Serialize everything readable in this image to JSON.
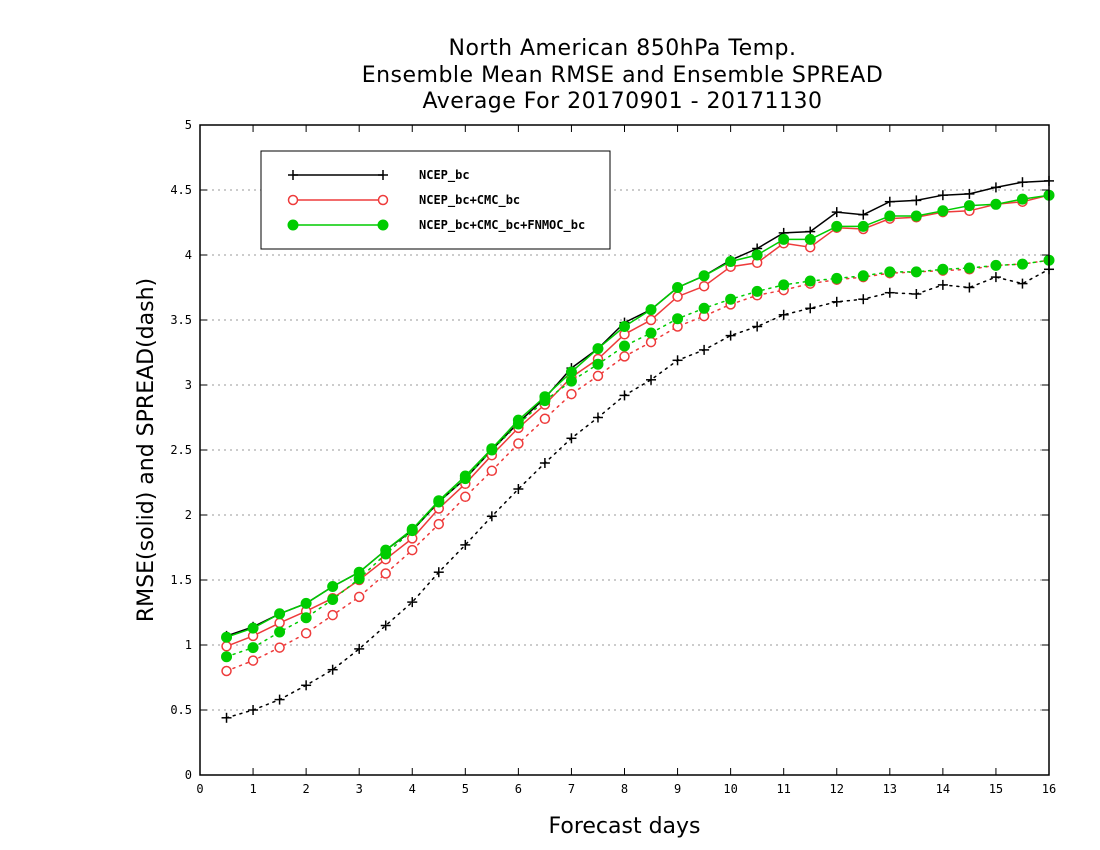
{
  "chart_data": {
    "type": "line",
    "title": [
      "North American 850hPa Temp.",
      "Ensemble Mean RMSE and Ensemble SPREAD",
      "Average For 20170901 - 20171130"
    ],
    "xlabel": "Forecast days",
    "ylabel": "RMSE(solid) and SPREAD(dash)",
    "xlim": [
      0,
      16
    ],
    "ylim": [
      0,
      5
    ],
    "xticks": [
      "0",
      "1",
      "2",
      "3",
      "4",
      "5",
      "6",
      "7",
      "8",
      "9",
      "10",
      "11",
      "12",
      "13",
      "14",
      "15",
      "16"
    ],
    "yticks": [
      "0",
      "0.5",
      "1",
      "1.5",
      "2",
      "2.5",
      "3",
      "3.5",
      "4",
      "4.5",
      "5"
    ],
    "grid": true,
    "legend_position": "top-left",
    "x": [
      0.5,
      1,
      1.5,
      2,
      2.5,
      3,
      3.5,
      4,
      4.5,
      5,
      5.5,
      6,
      6.5,
      7,
      7.5,
      8,
      8.5,
      9,
      9.5,
      10,
      10.5,
      11,
      11.5,
      12,
      12.5,
      13,
      13.5,
      14,
      14.5,
      15,
      15.5,
      16
    ],
    "series": [
      {
        "name": "NCEP_bc",
        "color": "#000000",
        "marker": "plus",
        "rmse": [
          1.07,
          1.14,
          1.24,
          1.32,
          1.45,
          1.56,
          1.73,
          1.88,
          2.1,
          2.28,
          2.5,
          2.71,
          2.9,
          3.13,
          3.28,
          3.48,
          3.58,
          3.75,
          3.84,
          3.96,
          4.05,
          4.17,
          4.18,
          4.33,
          4.31,
          4.41,
          4.42,
          4.46,
          4.47,
          4.52,
          4.56,
          4.57
        ],
        "spread": [
          0.44,
          0.5,
          0.58,
          0.69,
          0.81,
          0.97,
          1.15,
          1.33,
          1.56,
          1.77,
          1.99,
          2.2,
          2.4,
          2.59,
          2.75,
          2.92,
          3.04,
          3.19,
          3.27,
          3.38,
          3.45,
          3.54,
          3.59,
          3.64,
          3.66,
          3.71,
          3.7,
          3.77,
          3.75,
          3.83,
          3.78,
          3.89
        ]
      },
      {
        "name": "NCEP_bc+CMC_bc",
        "color": "#ee3b3b",
        "marker": "open-circle",
        "rmse": [
          0.99,
          1.07,
          1.17,
          1.26,
          1.36,
          1.5,
          1.66,
          1.82,
          2.05,
          2.24,
          2.46,
          2.67,
          2.85,
          3.06,
          3.2,
          3.39,
          3.5,
          3.68,
          3.76,
          3.91,
          3.94,
          4.09,
          4.06,
          4.21,
          4.2,
          4.28,
          4.29,
          4.33,
          4.34,
          4.39,
          4.41,
          4.46
        ],
        "spread": [
          0.8,
          0.88,
          0.98,
          1.09,
          1.23,
          1.37,
          1.55,
          1.73,
          1.93,
          2.14,
          2.34,
          2.55,
          2.74,
          2.93,
          3.07,
          3.22,
          3.33,
          3.45,
          3.53,
          3.62,
          3.69,
          3.73,
          3.78,
          3.81,
          3.83,
          3.86,
          3.87,
          3.88,
          3.89,
          3.92,
          3.93,
          3.96
        ]
      },
      {
        "name": "NCEP_bc+CMC_bc+FNMOC_bc",
        "color": "#00cc00",
        "marker": "filled-circle",
        "rmse": [
          1.06,
          1.13,
          1.24,
          1.32,
          1.45,
          1.56,
          1.73,
          1.89,
          2.11,
          2.3,
          2.51,
          2.73,
          2.91,
          3.1,
          3.28,
          3.45,
          3.58,
          3.75,
          3.84,
          3.95,
          4.0,
          4.12,
          4.12,
          4.22,
          4.22,
          4.3,
          4.3,
          4.34,
          4.38,
          4.39,
          4.43,
          4.46
        ],
        "spread": [
          0.91,
          0.98,
          1.1,
          1.21,
          1.35,
          1.51,
          1.7,
          1.88,
          2.1,
          2.28,
          2.5,
          2.7,
          2.88,
          3.03,
          3.16,
          3.3,
          3.4,
          3.51,
          3.59,
          3.66,
          3.72,
          3.77,
          3.8,
          3.82,
          3.84,
          3.87,
          3.87,
          3.89,
          3.9,
          3.92,
          3.93,
          3.96
        ]
      }
    ]
  }
}
